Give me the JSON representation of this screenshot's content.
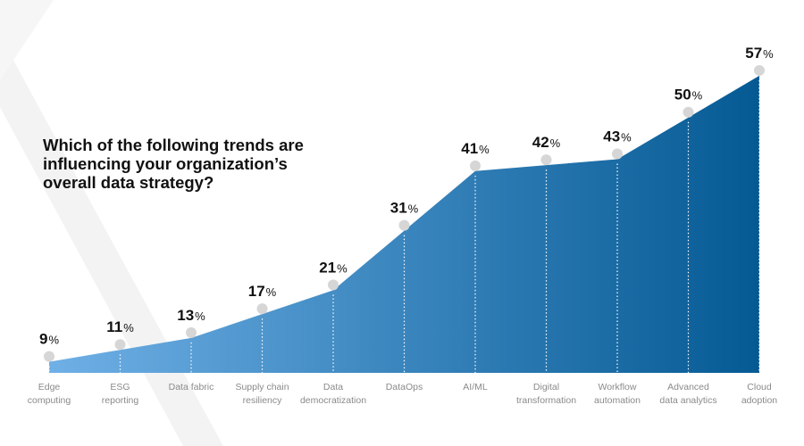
{
  "question": {
    "lines": [
      "Which of the following trends are",
      "influencing your organization’s",
      "overall data strategy?"
    ]
  },
  "colors": {
    "gradient_start": "#6fb0e6",
    "gradient_end": "#055a94",
    "marker": "#d6d6d6",
    "decor": "#f2f2f2"
  },
  "chart_data": {
    "type": "area",
    "title": "Which of the following trends are influencing your organization’s overall data strategy?",
    "categories": [
      [
        "Edge",
        "computing"
      ],
      [
        "ESG",
        "reporting"
      ],
      [
        "Data fabric"
      ],
      [
        "Supply chain",
        "resiliency"
      ],
      [
        "Data",
        "democratization"
      ],
      [
        "DataOps"
      ],
      [
        "AI/ML"
      ],
      [
        "Digital",
        "transformation"
      ],
      [
        "Workflow",
        "automation"
      ],
      [
        "Advanced",
        "data analytics"
      ],
      [
        "Cloud",
        "adoption"
      ]
    ],
    "values": [
      9,
      11,
      13,
      17,
      21,
      31,
      41,
      42,
      43,
      50,
      57
    ],
    "unit": "%",
    "ylim": [
      0,
      60
    ],
    "xlabel": "",
    "ylabel": "",
    "grid": false,
    "legend": "none"
  }
}
